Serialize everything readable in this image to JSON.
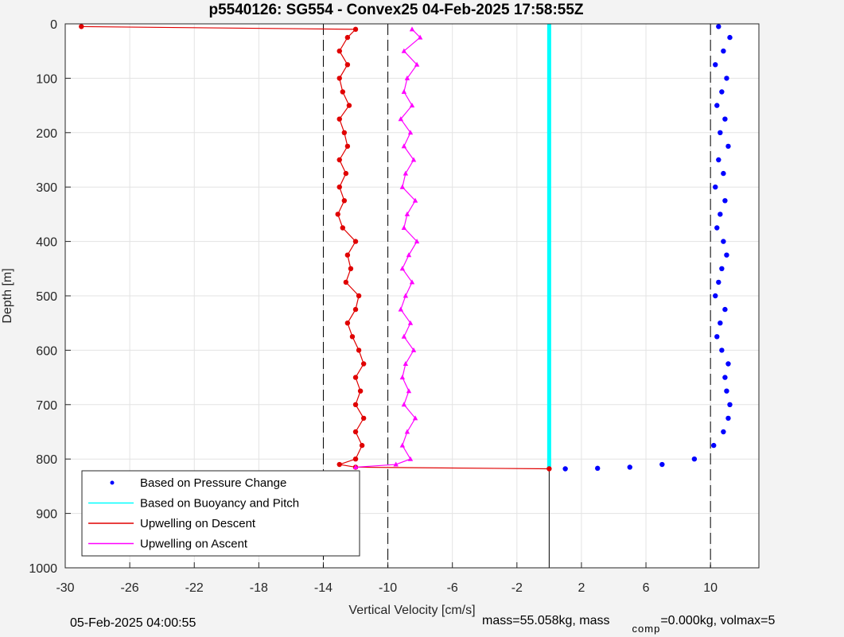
{
  "chart_data": {
    "type": "scatter",
    "title": "p5540126: SG554 - Convex25 04-Feb-2025 17:58:55Z",
    "xlabel": "Vertical Velocity [cm/s]",
    "ylabel": "Depth [m]",
    "xlim": [
      -30,
      13
    ],
    "ylim": [
      0,
      1000
    ],
    "y_reversed": true,
    "grid": true,
    "xticks": [
      "-30",
      "-26",
      "-22",
      "-18",
      "-14",
      "-10",
      "-6",
      "-2",
      "2",
      "6",
      "10"
    ],
    "yticks": [
      "0",
      "100",
      "200",
      "300",
      "400",
      "500",
      "600",
      "700",
      "800",
      "900",
      "1000"
    ],
    "reference_lines": [
      -14,
      -10,
      0,
      10
    ],
    "colors": {
      "pressure": "#0000ff",
      "buoyancy": "#00ffff",
      "descent": "#e00000",
      "ascent": "#ff00ff"
    },
    "legend": {
      "location": "bottom-left",
      "entries": [
        "Based on Pressure Change",
        "Based on Buoyancy and Pitch",
        "Upwelling on Descent",
        "Upwelling on Ascent"
      ]
    },
    "series": [
      {
        "key": "pressure",
        "marker": "dot",
        "depth": [
          5,
          25,
          50,
          75,
          100,
          125,
          150,
          175,
          200,
          225,
          250,
          275,
          300,
          325,
          350,
          375,
          400,
          425,
          450,
          475,
          500,
          525,
          550,
          575,
          600,
          625,
          650,
          675,
          700,
          725,
          750,
          775,
          800,
          810,
          815,
          817,
          818
        ],
        "values": [
          10.5,
          11.2,
          10.8,
          10.3,
          11.0,
          10.7,
          10.4,
          10.9,
          10.6,
          11.1,
          10.5,
          10.8,
          10.3,
          10.9,
          10.6,
          10.4,
          10.8,
          11.0,
          10.7,
          10.5,
          10.3,
          10.9,
          10.6,
          10.4,
          10.7,
          11.1,
          10.9,
          11.0,
          11.2,
          11.1,
          10.8,
          10.2,
          9.0,
          7.0,
          5.0,
          3.0,
          1.0
        ]
      },
      {
        "key": "buoyancy",
        "marker": "line",
        "depth": [
          0,
          200,
          400,
          600,
          800,
          818
        ],
        "values": [
          0,
          0,
          0,
          0,
          0,
          0
        ]
      },
      {
        "key": "descent",
        "marker": "dot-line",
        "depth": [
          5,
          10,
          25,
          50,
          75,
          100,
          125,
          150,
          175,
          200,
          225,
          250,
          275,
          300,
          325,
          350,
          375,
          400,
          425,
          450,
          475,
          500,
          525,
          550,
          575,
          600,
          625,
          650,
          675,
          700,
          725,
          750,
          775,
          800,
          810,
          815,
          818
        ],
        "values": [
          -29,
          -12,
          -12.5,
          -13,
          -12.5,
          -13,
          -12.8,
          -12.4,
          -13,
          -12.7,
          -12.5,
          -13,
          -12.6,
          -13,
          -12.7,
          -13.1,
          -12.8,
          -12,
          -12.5,
          -12.3,
          -12.6,
          -11.8,
          -12,
          -12.5,
          -12.2,
          -11.8,
          -11.5,
          -12,
          -11.7,
          -12,
          -11.5,
          -12,
          -11.6,
          -12,
          -13,
          -12,
          0
        ]
      },
      {
        "key": "ascent",
        "marker": "triangle-line",
        "depth": [
          10,
          25,
          50,
          75,
          100,
          125,
          150,
          175,
          200,
          225,
          250,
          275,
          300,
          325,
          350,
          375,
          400,
          425,
          450,
          475,
          500,
          525,
          550,
          575,
          600,
          625,
          650,
          675,
          700,
          725,
          750,
          775,
          800,
          810,
          815
        ],
        "values": [
          -8.5,
          -8,
          -9,
          -8.2,
          -8.8,
          -9,
          -8.5,
          -9.2,
          -8.6,
          -9,
          -8.4,
          -8.9,
          -9.1,
          -8.3,
          -8.8,
          -9,
          -8.2,
          -8.7,
          -9.1,
          -8.5,
          -8.9,
          -9.2,
          -8.6,
          -9,
          -8.4,
          -8.9,
          -9.1,
          -8.7,
          -9,
          -8.3,
          -8.8,
          -9.1,
          -8.6,
          -9.5,
          -12
        ]
      }
    ]
  },
  "footer": {
    "date": "05-Feb-2025 04:00:55",
    "mass_text": "mass=55.058kg, mass",
    "subscript": "comp",
    "rest": "=0.000kg, volmax=5"
  }
}
